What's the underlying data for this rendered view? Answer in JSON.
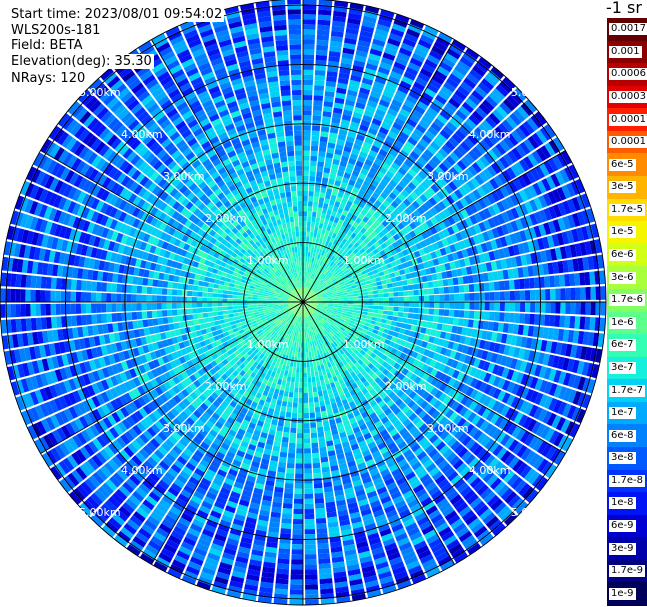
{
  "header": {
    "start_time": "Start time: 2023/08/01 09:54:02",
    "instrument": "WLS200s-181",
    "field": "Field: BETA",
    "elevation": "Elevation(deg): 35.30",
    "nrays": "NRays: 120"
  },
  "colorbar": {
    "unit_label": "-1 sr",
    "labels": [
      "0.0017",
      "0.001",
      "0.0006",
      "0.0003",
      "0.00017",
      "0.0001",
      "6e-5",
      "3e-5",
      "1.7e-5",
      "1e-5",
      "6e-6",
      "3e-6",
      "1.7e-6",
      "1e-6",
      "6e-7",
      "3e-7",
      "1.7e-7",
      "1e-7",
      "6e-8",
      "3e-8",
      "1.7e-8",
      "1e-8",
      "6e-9",
      "3e-9",
      "1.7e-9",
      "1e-9"
    ],
    "colors": [
      "#650000",
      "#8e0000",
      "#b80000",
      "#e20000",
      "#ff1e00",
      "#ff5a00",
      "#ff8c00",
      "#ffb400",
      "#ffdc00",
      "#f5f500",
      "#d2ff14",
      "#aaff3c",
      "#82ff64",
      "#5aff8c",
      "#32ffb4",
      "#14f0dc",
      "#00d2f5",
      "#00aaff",
      "#0082ff",
      "#005aff",
      "#0032ff",
      "#0014f5",
      "#0000d2",
      "#0000aa",
      "#000082",
      "#00005a"
    ]
  },
  "chart_data": {
    "type": "heatmap",
    "subtype": "polar-ppi",
    "nrays": 120,
    "range_labels": [
      "1.00km",
      "2.00km",
      "3.00km",
      "4.00km",
      "5.00km"
    ],
    "max_range_km": 5.0,
    "spokes_deg": [
      0,
      30,
      60,
      90,
      120,
      150,
      180,
      210,
      240,
      270,
      300,
      330
    ],
    "value_range": [
      1e-09,
      0.0017
    ],
    "scale": "log"
  }
}
